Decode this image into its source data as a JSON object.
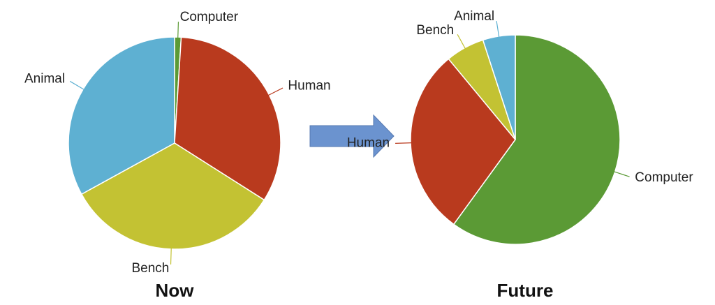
{
  "chart_data": [
    {
      "type": "pie",
      "title": "Now",
      "categories": [
        "Computer",
        "Human",
        "Bench",
        "Animal"
      ],
      "values": [
        1,
        33,
        33,
        33
      ],
      "colors": [
        "#5b9a35",
        "#b93a1e",
        "#c3c233",
        "#5eb0d2"
      ]
    },
    {
      "type": "pie",
      "title": "Future",
      "categories": [
        "Computer",
        "Human",
        "Bench",
        "Animal"
      ],
      "values": [
        60,
        29,
        6,
        5
      ],
      "colors": [
        "#5b9a35",
        "#b93a1e",
        "#c3c233",
        "#5eb0d2"
      ]
    }
  ]
}
